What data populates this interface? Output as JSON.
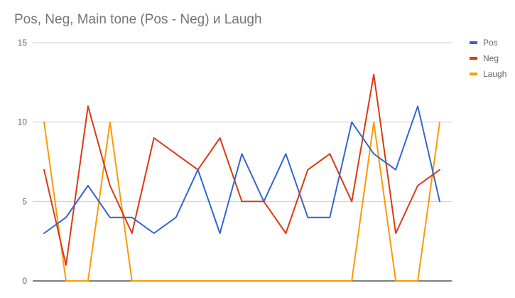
{
  "chart_data": {
    "type": "line",
    "title": "Pos, Neg, Main tone (Pos - Neg) и Laugh",
    "xlabel": "",
    "ylabel": "",
    "ylim": [
      0,
      15
    ],
    "yticks": [
      "0",
      "5",
      "10",
      "15"
    ],
    "grid": true,
    "legend_position": "right",
    "x": [
      1,
      2,
      3,
      4,
      5,
      6,
      7,
      8,
      9,
      10,
      11,
      12,
      13,
      14,
      15,
      16,
      17,
      18,
      19
    ],
    "series": [
      {
        "name": "Pos",
        "color": "#3366cc",
        "values": [
          3,
          4,
          6,
          4,
          4,
          3,
          4,
          7,
          3,
          8,
          5,
          8,
          4,
          4,
          10,
          8,
          7,
          11,
          5
        ]
      },
      {
        "name": "Neg",
        "color": "#dc3912",
        "values": [
          7,
          1,
          11,
          6,
          3,
          9,
          8,
          7,
          9,
          5,
          5,
          3,
          7,
          8,
          5,
          13,
          3,
          6,
          7
        ]
      },
      {
        "name": "Laugh",
        "color": "#ff9900",
        "values": [
          10,
          0,
          0,
          10,
          0,
          0,
          0,
          0,
          0,
          0,
          0,
          0,
          0,
          0,
          0,
          10,
          0,
          0,
          10
        ]
      }
    ]
  }
}
